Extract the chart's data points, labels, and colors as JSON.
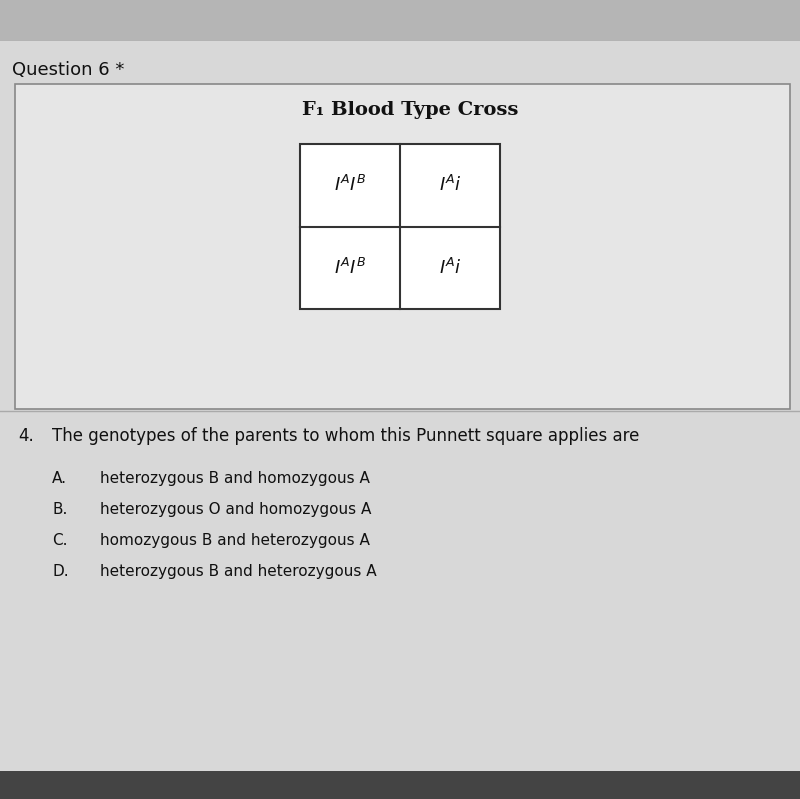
{
  "question_label": "Question 6 *",
  "punnett_title": "F₁ Blood Type Cross",
  "question_number": "4.",
  "question_text": "The genotypes of the parents to whom this Punnett square applies are",
  "options": [
    [
      "A.",
      "heterozygous B and homozygous A"
    ],
    [
      "B.",
      "heterozygous O and homozygous A"
    ],
    [
      "C.",
      "homozygous B and heterozygous A"
    ],
    [
      "D.",
      "heterozygous B and heterozygous A"
    ]
  ],
  "cell_top_left": "$\\mathit{I}^{\\mathit{A}}\\mathit{I}^{\\mathit{B}}$",
  "cell_top_right": "$\\mathit{I}^{\\mathit{A}}\\mathit{i}$",
  "cell_bot_left": "$\\mathit{I}^{\\mathit{A}}\\mathit{I}^{\\mathit{B}}$",
  "cell_bot_right": "$\\mathit{I}^{\\mathit{A}}\\mathit{i}$"
}
